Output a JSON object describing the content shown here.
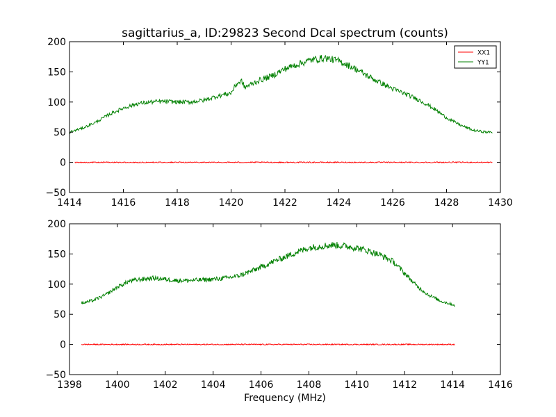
{
  "figure": {
    "title": "sagittarius_a, ID:29823 Second Dcal spectrum (counts)",
    "xlabel": "Frequency (MHz)"
  },
  "chart_data": [
    {
      "type": "line",
      "name": "top-panel",
      "xlim": [
        1414,
        1430
      ],
      "ylim": [
        -50,
        200
      ],
      "xticks": [
        "1414",
        "1416",
        "1418",
        "1420",
        "1422",
        "1424",
        "1426",
        "1428",
        "1430"
      ],
      "yticks": [
        "−50",
        "0",
        "50",
        "100",
        "150",
        "200"
      ],
      "legend_position": "top-right",
      "series": [
        {
          "name": "XX1",
          "color": "#ff0000",
          "x": [
            1414.2,
            1429.7
          ],
          "y": [
            0,
            0
          ]
        },
        {
          "name": "YY1",
          "color": "#008000",
          "x": [
            1414.0,
            1414.5,
            1415.0,
            1415.5,
            1416.0,
            1416.5,
            1417.0,
            1417.5,
            1418.0,
            1418.5,
            1419.0,
            1419.5,
            1420.0,
            1420.2,
            1420.4,
            1420.5,
            1421.0,
            1421.5,
            1422.0,
            1422.5,
            1423.0,
            1423.5,
            1424.0,
            1424.5,
            1425.0,
            1425.5,
            1426.0,
            1426.5,
            1427.0,
            1427.5,
            1428.0,
            1428.5,
            1429.0,
            1429.5,
            1429.7
          ],
          "y": [
            50,
            57,
            67,
            80,
            90,
            97,
            100,
            101,
            100,
            100,
            103,
            110,
            115,
            130,
            135,
            124,
            135,
            143,
            155,
            163,
            170,
            173,
            168,
            158,
            145,
            133,
            122,
            113,
            103,
            90,
            74,
            62,
            53,
            50,
            50
          ]
        }
      ]
    },
    {
      "type": "line",
      "name": "bottom-panel",
      "xlim": [
        1398,
        1416
      ],
      "ylim": [
        -50,
        200
      ],
      "xticks": [
        "1398",
        "1400",
        "1402",
        "1404",
        "1406",
        "1408",
        "1410",
        "1412",
        "1414",
        "1416"
      ],
      "yticks": [
        "−50",
        "0",
        "50",
        "100",
        "150",
        "200"
      ],
      "series": [
        {
          "name": "XX1",
          "color": "#ff0000",
          "x": [
            1398.5,
            1414.1
          ],
          "y": [
            0,
            0
          ]
        },
        {
          "name": "YY1",
          "color": "#008000",
          "x": [
            1398.5,
            1399.0,
            1399.5,
            1400.0,
            1400.5,
            1401.0,
            1401.5,
            1402.0,
            1402.5,
            1403.0,
            1403.5,
            1404.0,
            1404.5,
            1405.0,
            1405.5,
            1406.0,
            1406.5,
            1407.0,
            1407.5,
            1408.0,
            1408.5,
            1409.0,
            1409.5,
            1410.0,
            1410.5,
            1411.0,
            1411.5,
            1412.0,
            1412.5,
            1413.0,
            1413.5,
            1414.1
          ],
          "y": [
            68,
            73,
            82,
            95,
            105,
            108,
            110,
            108,
            106,
            106,
            107,
            108,
            110,
            113,
            120,
            128,
            137,
            145,
            153,
            160,
            163,
            165,
            163,
            160,
            155,
            148,
            138,
            118,
            97,
            82,
            72,
            65
          ]
        }
      ]
    }
  ]
}
